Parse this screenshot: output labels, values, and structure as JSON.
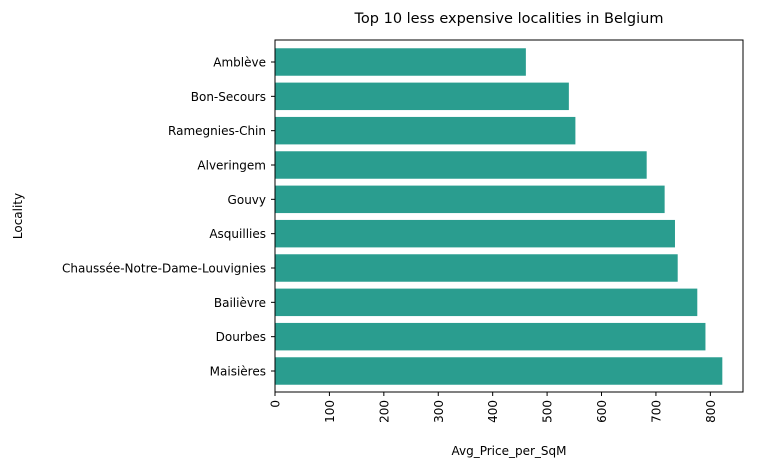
{
  "chart_data": {
    "type": "bar",
    "orientation": "horizontal",
    "title": "Top 10 less expensive localities in Belgium",
    "xlabel": "Avg_Price_per_SqM",
    "ylabel": "Locality",
    "categories": [
      "Amblève",
      "Bon-Secours",
      "Ramegnies-Chin",
      "Alveringem",
      "Gouvy",
      "Asquillies",
      "Chaussée-Notre-Dame-Louvignies",
      "Bailièvre",
      "Dourbes",
      "Maisières"
    ],
    "values": [
      461,
      540,
      552,
      683,
      716,
      735,
      740,
      776,
      791,
      822
    ],
    "xlim": [
      0,
      860
    ],
    "xticks": [
      0,
      100,
      200,
      300,
      400,
      500,
      600,
      700,
      800
    ],
    "bar_color": "#2a9d8f",
    "grid": false,
    "legend": "none"
  }
}
